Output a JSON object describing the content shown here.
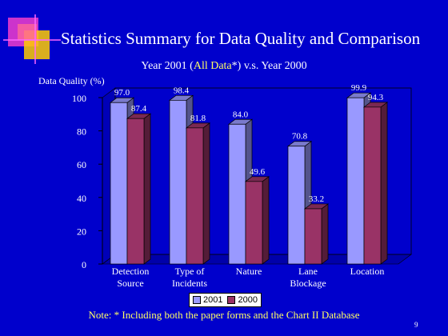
{
  "slide": {
    "title": "Statistics Summary for Data Quality and Comparison",
    "subtitle_parts": [
      "Year 2001 (",
      "All Data",
      "*) v.s. Year 2000"
    ],
    "note": "Note: * Including both the paper forms and the Chart II Database",
    "page_number": "9"
  },
  "colors": {
    "background": "#0000cc",
    "series_2001": "#9999ff",
    "series_2000": "#993366",
    "highlight_text": "#ffff66"
  },
  "chart_data": {
    "type": "bar",
    "ylabel": "Data Quality (%)",
    "xlabel": "",
    "ylim": [
      0,
      100
    ],
    "yticks": [
      0,
      20,
      40,
      60,
      80,
      100
    ],
    "categories": [
      [
        "Detection",
        "Source"
      ],
      [
        "Type of",
        "Incidents"
      ],
      [
        "Nature"
      ],
      [
        "Lane",
        "Blockage"
      ],
      [
        "Location"
      ]
    ],
    "series": [
      {
        "name": "2001",
        "values": [
          97.0,
          98.4,
          84.0,
          70.8,
          99.9
        ],
        "labels": [
          "97.0",
          "98.4",
          "84.0",
          "70.8",
          "99.9"
        ]
      },
      {
        "name": "2000",
        "values": [
          87.4,
          81.8,
          49.6,
          33.2,
          94.3
        ],
        "labels": [
          "87.4",
          "81.8",
          "49.6",
          "33.2",
          "94.3"
        ]
      }
    ],
    "legend_position": "bottom",
    "grid": false,
    "style": "3d-column"
  }
}
